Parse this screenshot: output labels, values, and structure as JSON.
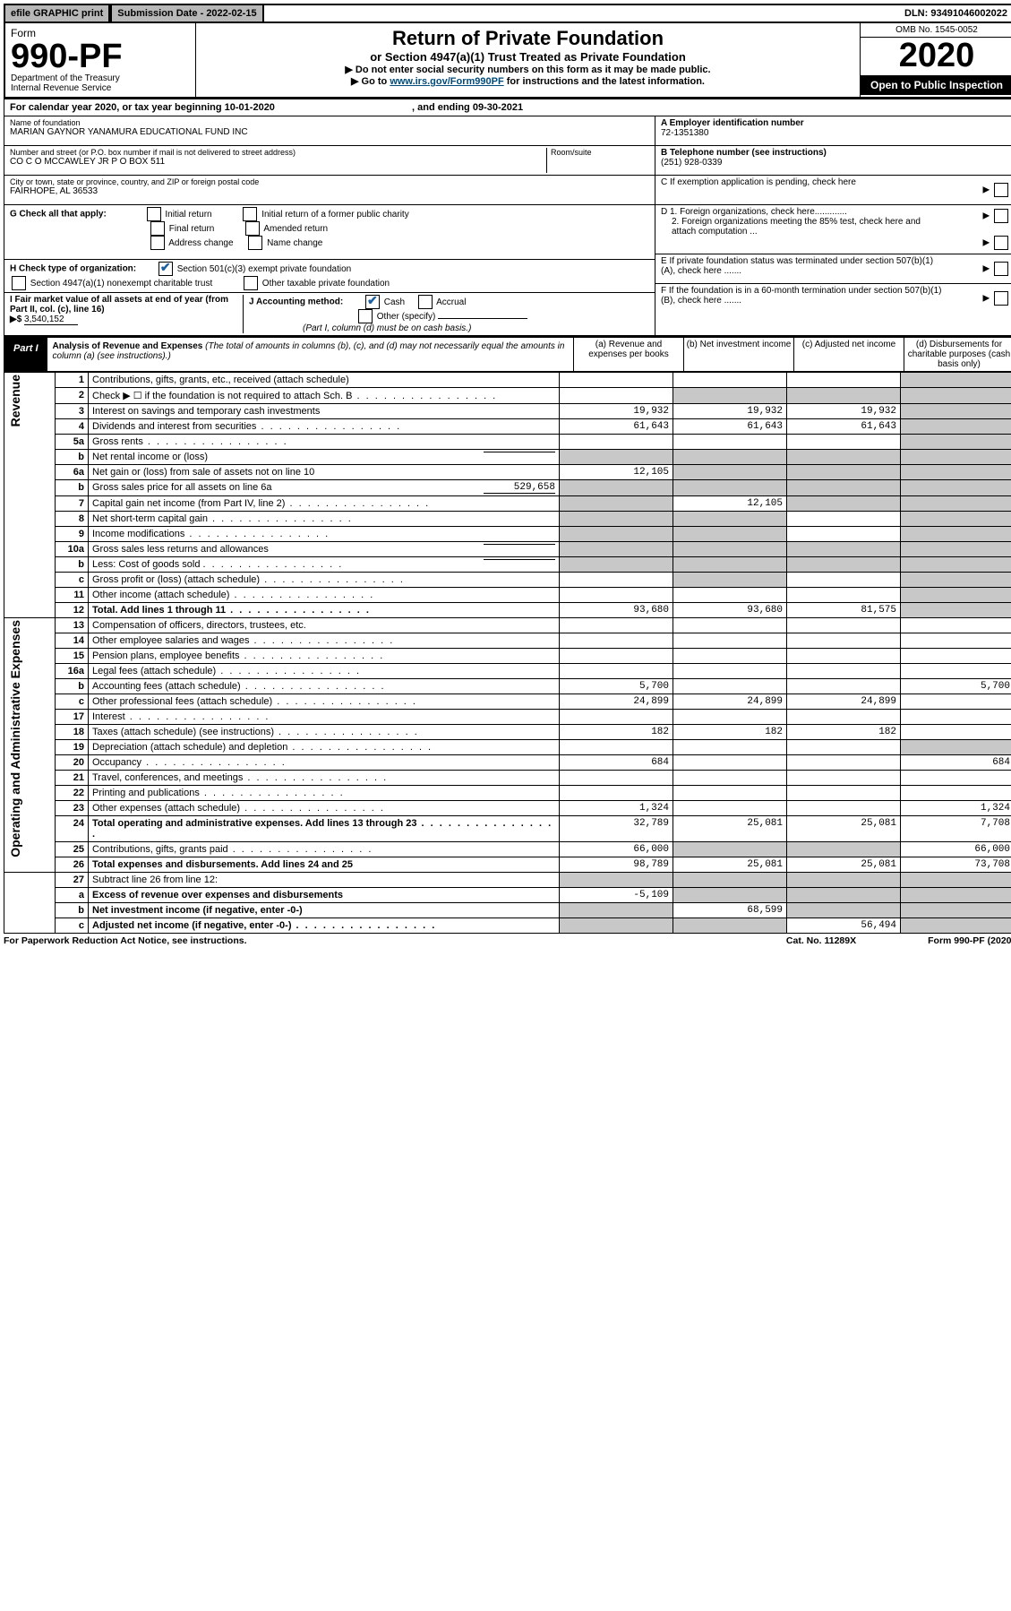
{
  "topbar": {
    "efile": "efile GRAPHIC print",
    "submission_label": "Submission Date - 2022-02-15",
    "dln": "DLN: 93491046002022"
  },
  "header": {
    "form_word": "Form",
    "form_no": "990-PF",
    "dept": "Department of the Treasury",
    "irs": "Internal Revenue Service",
    "title": "Return of Private Foundation",
    "subtitle": "or Section 4947(a)(1) Trust Treated as Private Foundation",
    "instr1": "▶ Do not enter social security numbers on this form as it may be made public.",
    "instr2_pre": "▶ Go to ",
    "instr2_link": "www.irs.gov/Form990PF",
    "instr2_post": " for instructions and the latest information.",
    "omb": "OMB No. 1545-0052",
    "year": "2020",
    "open": "Open to Public Inspection"
  },
  "calendar": {
    "text_pre": "For calendar year 2020, or tax year beginning ",
    "begin": "10-01-2020",
    "mid": " , and ending ",
    "end": "09-30-2021"
  },
  "entity": {
    "name_label": "Name of foundation",
    "name": "MARIAN GAYNOR YANAMURA EDUCATIONAL FUND INC",
    "addr_label": "Number and street (or P.O. box number if mail is not delivered to street address)",
    "addr": "CO C O MCCAWLEY JR P O BOX 511",
    "room_label": "Room/suite",
    "city_label": "City or town, state or province, country, and ZIP or foreign postal code",
    "city": "FAIRHOPE, AL  36533",
    "ein_label": "A Employer identification number",
    "ein": "72-1351380",
    "tel_label": "B Telephone number (see instructions)",
    "tel": "(251) 928-0339",
    "c_label": "C  If exemption application is pending, check here",
    "d1": "D 1. Foreign organizations, check here.............",
    "d2": "2. Foreign organizations meeting the 85% test, check here and attach computation ...",
    "e": "E  If private foundation status was terminated under section 507(b)(1)(A), check here .......",
    "f": "F  If the foundation is in a 60-month termination under section 507(b)(1)(B), check here ......."
  },
  "g": {
    "label": "G Check all that apply:",
    "initial": "Initial return",
    "initial_pub": "Initial return of a former public charity",
    "final": "Final return",
    "amended": "Amended return",
    "addr": "Address change",
    "name": "Name change"
  },
  "h": {
    "label": "H Check type of organization:",
    "s501": "Section 501(c)(3) exempt private foundation",
    "s4947": "Section 4947(a)(1) nonexempt charitable trust",
    "other": "Other taxable private foundation"
  },
  "i": {
    "label": "I Fair market value of all assets at end of year (from Part II, col. (c), line 16) ",
    "arrow": "▶$",
    "value": "3,540,152"
  },
  "j": {
    "label": "J Accounting method:",
    "cash": "Cash",
    "accrual": "Accrual",
    "other": "Other (specify)",
    "note": "(Part I, column (d) must be on cash basis.)"
  },
  "part1": {
    "tab": "Part I",
    "title": "Analysis of Revenue and Expenses",
    "title_note": "(The total of amounts in columns (b), (c), and (d) may not necessarily equal the amounts in column (a) (see instructions).)",
    "col_a": "(a) Revenue and expenses per books",
    "col_b": "(b) Net investment income",
    "col_c": "(c) Adjusted net income",
    "col_d": "(d) Disbursements for charitable purposes (cash basis only)"
  },
  "sections": {
    "revenue": "Revenue",
    "opex": "Operating and Administrative Expenses"
  },
  "rows": [
    {
      "sec": "rev",
      "no": "1",
      "desc": "Contributions, gifts, grants, etc., received (attach schedule)",
      "a": "",
      "b": "",
      "c": "",
      "d": "",
      "d_shade": true
    },
    {
      "sec": "rev",
      "no": "2",
      "desc": "Check ▶ ☐ if the foundation is not required to attach Sch. B",
      "dot": true,
      "a": "",
      "b": "shade",
      "c": "shade",
      "d": "",
      "d_shade": true,
      "full_shade_bcd": true
    },
    {
      "sec": "rev",
      "no": "3",
      "desc": "Interest on savings and temporary cash investments",
      "a": "19,932",
      "b": "19,932",
      "c": "19,932",
      "d": "",
      "d_shade": true
    },
    {
      "sec": "rev",
      "no": "4",
      "desc": "Dividends and interest from securities",
      "dot": true,
      "a": "61,643",
      "b": "61,643",
      "c": "61,643",
      "d": "",
      "d_shade": true
    },
    {
      "sec": "rev",
      "no": "5a",
      "desc": "Gross rents",
      "dot": true,
      "a": "",
      "b": "",
      "c": "",
      "d": "",
      "d_shade": true
    },
    {
      "sec": "rev",
      "no": "b",
      "desc": "Net rental income or (loss)",
      "inline": "",
      "a": "shade",
      "b": "shade",
      "c": "shade",
      "d": "",
      "d_shade": true,
      "full_shade_abcd": true
    },
    {
      "sec": "rev",
      "no": "6a",
      "desc": "Net gain or (loss) from sale of assets not on line 10",
      "a": "12,105",
      "b": "shade",
      "c": "shade",
      "d": "",
      "d_shade": true,
      "b_shade": true,
      "c_shade": true
    },
    {
      "sec": "rev",
      "no": "b",
      "desc": "Gross sales price for all assets on line 6a",
      "inline": "529,658",
      "a": "shade",
      "b": "shade",
      "c": "shade",
      "d": "",
      "d_shade": true,
      "full_shade_abcd": true
    },
    {
      "sec": "rev",
      "no": "7",
      "desc": "Capital gain net income (from Part IV, line 2)",
      "dot": true,
      "a": "shade",
      "b": "12,105",
      "c": "shade",
      "d": "",
      "d_shade": true,
      "a_shade": true,
      "c_shade": true
    },
    {
      "sec": "rev",
      "no": "8",
      "desc": "Net short-term capital gain",
      "dot": true,
      "a": "shade",
      "b": "shade",
      "c": "",
      "d": "",
      "d_shade": true,
      "a_shade": true,
      "b_shade": true
    },
    {
      "sec": "rev",
      "no": "9",
      "desc": "Income modifications",
      "dot": true,
      "a": "shade",
      "b": "shade",
      "c": "",
      "d": "",
      "d_shade": true,
      "a_shade": true,
      "b_shade": true
    },
    {
      "sec": "rev",
      "no": "10a",
      "desc": "Gross sales less returns and allowances",
      "inline": "",
      "a": "shade",
      "b": "shade",
      "c": "shade",
      "d": "",
      "d_shade": true,
      "full_shade_abcd": true
    },
    {
      "sec": "rev",
      "no": "b",
      "desc": "Less: Cost of goods sold",
      "dot": true,
      "inline": "",
      "a": "shade",
      "b": "shade",
      "c": "shade",
      "d": "",
      "d_shade": true,
      "full_shade_abcd": true
    },
    {
      "sec": "rev",
      "no": "c",
      "desc": "Gross profit or (loss) (attach schedule)",
      "dot": true,
      "a": "",
      "b": "shade",
      "c": "",
      "d": "",
      "d_shade": true,
      "b_shade": true
    },
    {
      "sec": "rev",
      "no": "11",
      "desc": "Other income (attach schedule)",
      "dot": true,
      "a": "",
      "b": "",
      "c": "",
      "d": "",
      "d_shade": true
    },
    {
      "sec": "rev",
      "no": "12",
      "desc": "Total. Add lines 1 through 11",
      "dot": true,
      "bold": true,
      "a": "93,680",
      "b": "93,680",
      "c": "81,575",
      "d": "",
      "d_shade": true
    },
    {
      "sec": "op",
      "no": "13",
      "desc": "Compensation of officers, directors, trustees, etc.",
      "a": "",
      "b": "",
      "c": "",
      "d": ""
    },
    {
      "sec": "op",
      "no": "14",
      "desc": "Other employee salaries and wages",
      "dot": true,
      "a": "",
      "b": "",
      "c": "",
      "d": ""
    },
    {
      "sec": "op",
      "no": "15",
      "desc": "Pension plans, employee benefits",
      "dot": true,
      "a": "",
      "b": "",
      "c": "",
      "d": ""
    },
    {
      "sec": "op",
      "no": "16a",
      "desc": "Legal fees (attach schedule)",
      "dot": true,
      "a": "",
      "b": "",
      "c": "",
      "d": ""
    },
    {
      "sec": "op",
      "no": "b",
      "desc": "Accounting fees (attach schedule)",
      "dot": true,
      "a": "5,700",
      "b": "",
      "c": "",
      "d": "5,700"
    },
    {
      "sec": "op",
      "no": "c",
      "desc": "Other professional fees (attach schedule)",
      "dot": true,
      "a": "24,899",
      "b": "24,899",
      "c": "24,899",
      "d": ""
    },
    {
      "sec": "op",
      "no": "17",
      "desc": "Interest",
      "dot": true,
      "a": "",
      "b": "",
      "c": "",
      "d": ""
    },
    {
      "sec": "op",
      "no": "18",
      "desc": "Taxes (attach schedule) (see instructions)",
      "dot": true,
      "a": "182",
      "b": "182",
      "c": "182",
      "d": ""
    },
    {
      "sec": "op",
      "no": "19",
      "desc": "Depreciation (attach schedule) and depletion",
      "dot": true,
      "a": "",
      "b": "",
      "c": "",
      "d": "",
      "d_shade": true
    },
    {
      "sec": "op",
      "no": "20",
      "desc": "Occupancy",
      "dot": true,
      "a": "684",
      "b": "",
      "c": "",
      "d": "684"
    },
    {
      "sec": "op",
      "no": "21",
      "desc": "Travel, conferences, and meetings",
      "dot": true,
      "a": "",
      "b": "",
      "c": "",
      "d": ""
    },
    {
      "sec": "op",
      "no": "22",
      "desc": "Printing and publications",
      "dot": true,
      "a": "",
      "b": "",
      "c": "",
      "d": ""
    },
    {
      "sec": "op",
      "no": "23",
      "desc": "Other expenses (attach schedule)",
      "dot": true,
      "a": "1,324",
      "b": "",
      "c": "",
      "d": "1,324"
    },
    {
      "sec": "op",
      "no": "24",
      "desc": "Total operating and administrative expenses. Add lines 13 through 23",
      "dot": true,
      "bold": true,
      "a": "32,789",
      "b": "25,081",
      "c": "25,081",
      "d": "7,708"
    },
    {
      "sec": "op",
      "no": "25",
      "desc": "Contributions, gifts, grants paid",
      "dot": true,
      "a": "66,000",
      "b": "shade",
      "c": "shade",
      "d": "66,000",
      "b_shade": true,
      "c_shade": true
    },
    {
      "sec": "op",
      "no": "26",
      "desc": "Total expenses and disbursements. Add lines 24 and 25",
      "bold": true,
      "a": "98,789",
      "b": "25,081",
      "c": "25,081",
      "d": "73,708"
    },
    {
      "sec": "net",
      "no": "27",
      "desc": "Subtract line 26 from line 12:",
      "a": "shade",
      "b": "shade",
      "c": "shade",
      "d": "shade",
      "full_shade_abcd": true
    },
    {
      "sec": "net",
      "no": "a",
      "desc": "Excess of revenue over expenses and disbursements",
      "bold": true,
      "a": "-5,109",
      "b": "shade",
      "c": "shade",
      "d": "shade",
      "b_shade": true,
      "c_shade": true,
      "d_shade": true
    },
    {
      "sec": "net",
      "no": "b",
      "desc": "Net investment income (if negative, enter -0-)",
      "bold": true,
      "a": "shade",
      "b": "68,599",
      "c": "shade",
      "d": "shade",
      "a_shade": true,
      "c_shade": true,
      "d_shade": true
    },
    {
      "sec": "net",
      "no": "c",
      "desc": "Adjusted net income (if negative, enter -0-)",
      "dot": true,
      "bold": true,
      "a": "shade",
      "b": "shade",
      "c": "56,494",
      "d": "shade",
      "a_shade": true,
      "b_shade": true,
      "d_shade": true
    }
  ],
  "footer": {
    "left": "For Paperwork Reduction Act Notice, see instructions.",
    "cat": "Cat. No. 11289X",
    "form": "Form 990-PF (2020)"
  }
}
